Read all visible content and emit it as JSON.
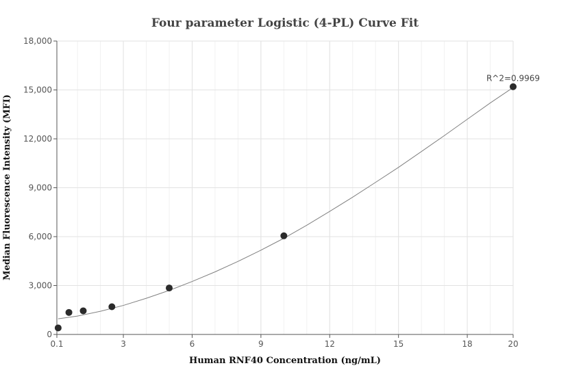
{
  "chart_data": {
    "type": "scatter",
    "title": "Four parameter Logistic (4-PL) Curve Fit",
    "xlabel": "Human RNF40 Concentration (ng/mL)",
    "ylabel": "Median Fluorescence Intensity (MFI)",
    "xlim": [
      0.1,
      20
    ],
    "ylim": [
      0,
      18000
    ],
    "x_ticks": [
      0.1,
      3,
      6,
      9,
      12,
      15,
      18,
      20
    ],
    "x_tick_labels": [
      "0.1",
      "3",
      "6",
      "9",
      "12",
      "15",
      "18",
      "20"
    ],
    "y_ticks": [
      0,
      3000,
      6000,
      9000,
      12000,
      15000,
      18000
    ],
    "y_tick_labels": [
      "0",
      "3,000",
      "6,000",
      "9,000",
      "12,000",
      "15,000",
      "18,000"
    ],
    "grid": true,
    "series": [
      {
        "kind": "points",
        "color": "#2b2b2b",
        "x": [
          0.156,
          0.625,
          1.25,
          2.5,
          5,
          10,
          20
        ],
        "y": [
          400,
          1350,
          1450,
          1700,
          2850,
          6050,
          15200
        ]
      },
      {
        "kind": "fit-curve",
        "color": "#808080",
        "x": [
          0.156,
          1,
          2,
          3,
          4,
          5,
          6,
          7,
          8,
          9,
          10,
          11,
          12,
          13,
          14,
          15,
          16,
          17,
          18,
          19,
          20
        ],
        "y": [
          960,
          1130,
          1420,
          1780,
          2220,
          2700,
          3250,
          3840,
          4480,
          5170,
          5900,
          6700,
          7550,
          8420,
          9330,
          10250,
          11220,
          12200,
          13200,
          14200,
          15150
        ]
      }
    ],
    "annotation": {
      "text": "R^2=0.9969",
      "x": 20,
      "y": 15200
    }
  }
}
